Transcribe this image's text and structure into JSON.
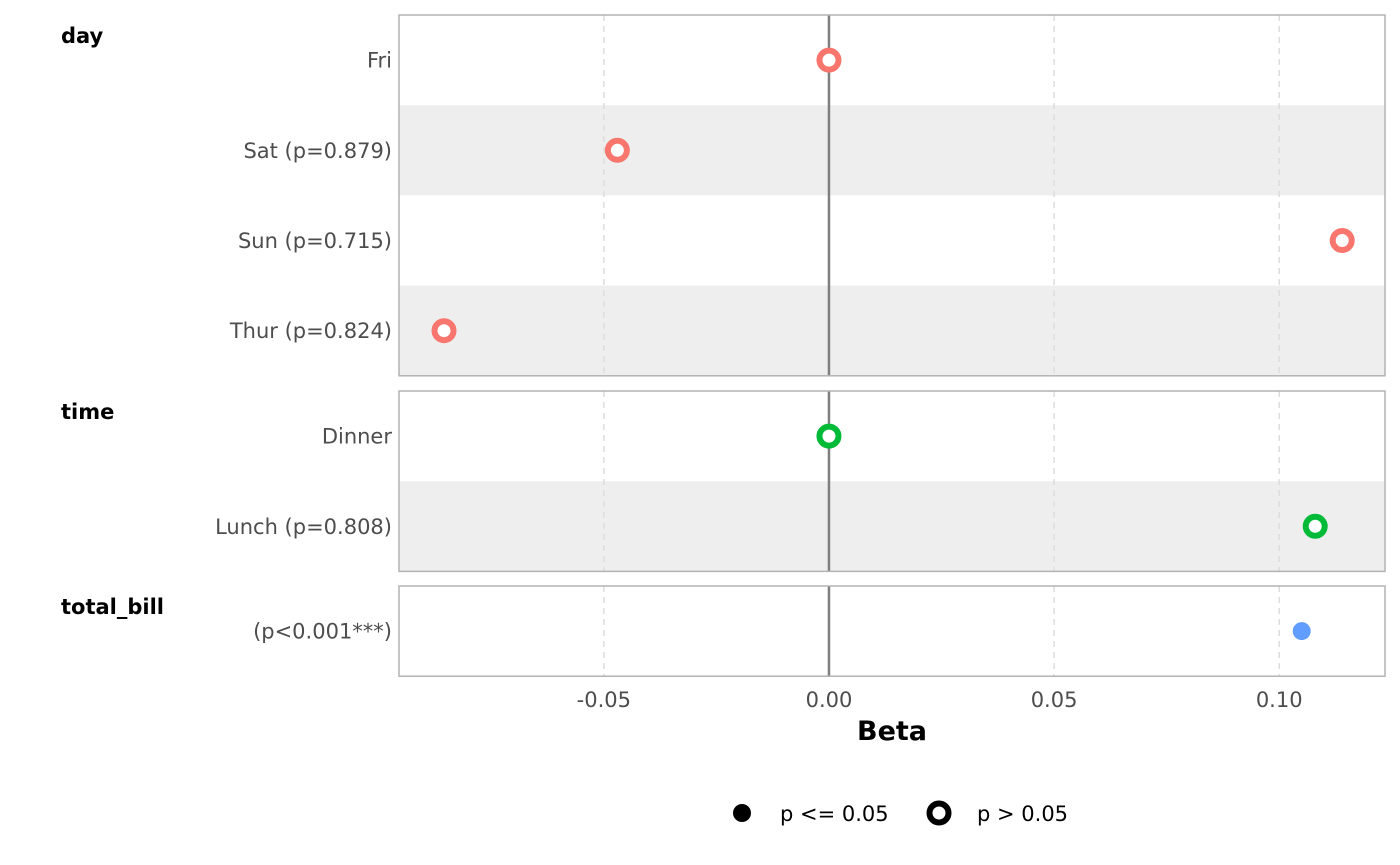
{
  "chart_data": {
    "type": "scatter",
    "xlabel": "Beta",
    "xlim": [
      -0.0955,
      0.1235
    ],
    "x_ticks": [
      {
        "value": -0.05,
        "label": "-0.05"
      },
      {
        "value": 0.0,
        "label": "0.00"
      },
      {
        "value": 0.05,
        "label": "0.05"
      },
      {
        "value": 0.1,
        "label": "0.10"
      }
    ],
    "reference_line": 0,
    "grid": true,
    "legend_position": "bottom",
    "legend": [
      {
        "symbol": "filled",
        "label": "p <= 0.05"
      },
      {
        "symbol": "hollow",
        "label": "p > 0.05"
      }
    ],
    "groups": [
      {
        "name": "day",
        "color": "#F8766D",
        "rows": [
          {
            "label": "Fri",
            "beta": 0.0,
            "significant": false
          },
          {
            "label": "Sat (p=0.879)",
            "beta": -0.047,
            "significant": false
          },
          {
            "label": "Sun (p=0.715)",
            "beta": 0.114,
            "significant": false
          },
          {
            "label": "Thur (p=0.824)",
            "beta": -0.0855,
            "significant": false
          }
        ]
      },
      {
        "name": "time",
        "color": "#00BA38",
        "rows": [
          {
            "label": "Dinner",
            "beta": 0.0,
            "significant": false
          },
          {
            "label": "Lunch (p=0.808)",
            "beta": 0.108,
            "significant": false
          }
        ]
      },
      {
        "name": "total_bill",
        "color": "#619CFF",
        "rows": [
          {
            "label": "(p<0.001***)",
            "beta": 0.105,
            "significant": true
          }
        ]
      }
    ]
  }
}
